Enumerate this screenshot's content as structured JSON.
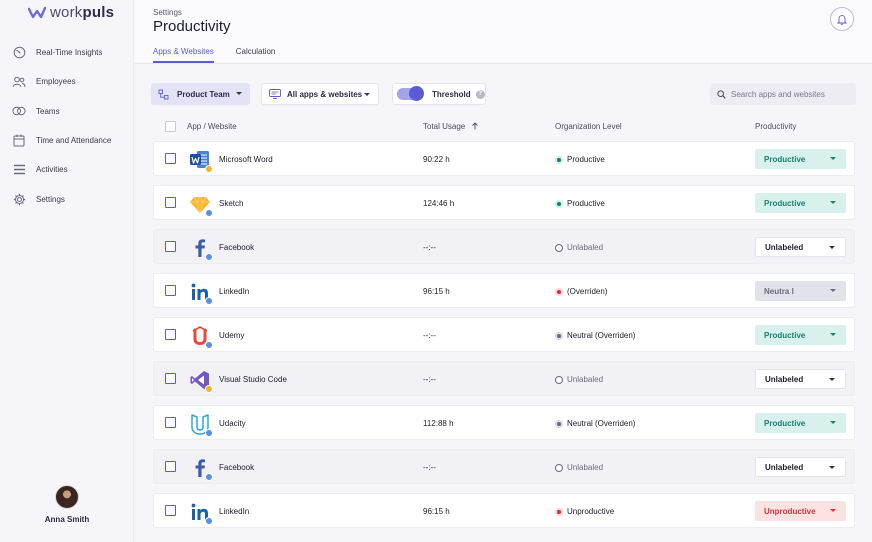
{
  "app": {
    "logo_light": "work",
    "logo_bold": "puls",
    "brand_color": "#5b5bd6"
  },
  "sidebar": {
    "items": [
      {
        "label": "Real-Time Insights",
        "icon": "realtime-icon"
      },
      {
        "label": "Employees",
        "icon": "users-icon"
      },
      {
        "label": "Teams",
        "icon": "teams-icon"
      },
      {
        "label": "Time and Attendance",
        "icon": "calendar-icon"
      },
      {
        "label": "Activities",
        "icon": "activities-icon"
      },
      {
        "label": "Settings",
        "icon": "gear-icon"
      }
    ],
    "user": {
      "name": "Anna Smith"
    }
  },
  "header": {
    "breadcrumb": "Settings",
    "title": "Productivity",
    "tabs": [
      {
        "label": "Apps & Websites",
        "active": true
      },
      {
        "label": "Calculation",
        "active": false
      }
    ]
  },
  "toolbar": {
    "team_select": "Product Team",
    "apps_select": "All apps & websites",
    "threshold_label": "Threshold",
    "threshold_on": true,
    "help_glyph": "?",
    "search_placeholder": "Search apps and websites"
  },
  "table": {
    "headers": {
      "app": "App / Website",
      "usage": "Total Usage",
      "org": "Organization Level",
      "productivity": "Productivity"
    },
    "rows": [
      {
        "app": "Microsoft Word",
        "icon": "word-icon",
        "usage": "90:22 h",
        "org": "Productive",
        "org_status": "productive",
        "productivity": "Productive",
        "prod_status": "productive",
        "alt": false
      },
      {
        "app": "Sketch",
        "icon": "sketch-icon",
        "usage": "124:46 h",
        "org": "Productive",
        "org_status": "productive",
        "productivity": "Productive",
        "prod_status": "productive",
        "alt": false
      },
      {
        "app": "Facebook",
        "icon": "facebook-icon",
        "usage": "--:--",
        "org": "Unlabaled",
        "org_status": "unlabeled",
        "productivity": "Unlabeled",
        "prod_status": "unlabeled",
        "alt": true
      },
      {
        "app": "LinkedIn",
        "icon": "linkedin-icon",
        "usage": "96:15 h",
        "org": " (Overriden)",
        "org_status": "unproductive",
        "productivity": "Neutra l",
        "prod_status": "neutral",
        "alt": false
      },
      {
        "app": "Udemy",
        "icon": "udemy-icon",
        "usage": "--:--",
        "org": "Neutral  (Overriden)",
        "org_status": "neutral",
        "productivity": "Productive",
        "prod_status": "productive",
        "alt": false
      },
      {
        "app": "Visual Studio Code",
        "icon": "vscode-icon",
        "usage": "--:--",
        "org": "Unlabaled",
        "org_status": "unlabeled",
        "productivity": "Unlabeled",
        "prod_status": "unlabeled",
        "alt": true
      },
      {
        "app": "Udacity",
        "icon": "udacity-icon",
        "usage": "112:88 h",
        "org": "Neutral (Overriden)",
        "org_status": "neutral",
        "productivity": "Productive",
        "prod_status": "productive",
        "alt": false
      },
      {
        "app": "Facebook",
        "icon": "facebook-icon",
        "usage": "--:--",
        "org": "Unlabaled",
        "org_status": "unlabeled",
        "productivity": "Unlabeled",
        "prod_status": "unlabeled",
        "alt": true
      },
      {
        "app": "LinkedIn",
        "icon": "linkedin-icon",
        "usage": "96:15 h",
        "org": "Unproductive",
        "org_status": "unproductive",
        "productivity": "Unproductive",
        "prod_status": "unproductive",
        "alt": false
      }
    ]
  }
}
